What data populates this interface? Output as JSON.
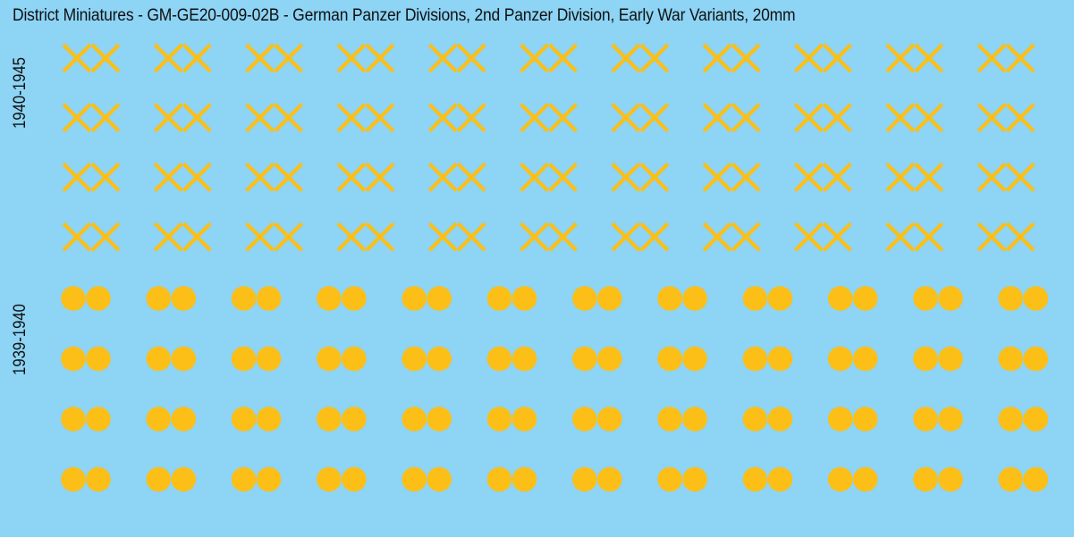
{
  "sheet": {
    "title": "District Miniatures - GM-GE20-009-02B - German Panzer Divisions, 2nd Panzer Division, Early War Variants, 20mm",
    "background_color": "#8dd4f5",
    "marking_color": "#fbbf18"
  },
  "variants": [
    {
      "era": "1940-1945",
      "symbol": "double-x-icon",
      "rows": 4,
      "columns": 11
    },
    {
      "era": "1939-1940",
      "symbol": "double-dot-icon",
      "rows": 4,
      "columns": 12
    }
  ]
}
